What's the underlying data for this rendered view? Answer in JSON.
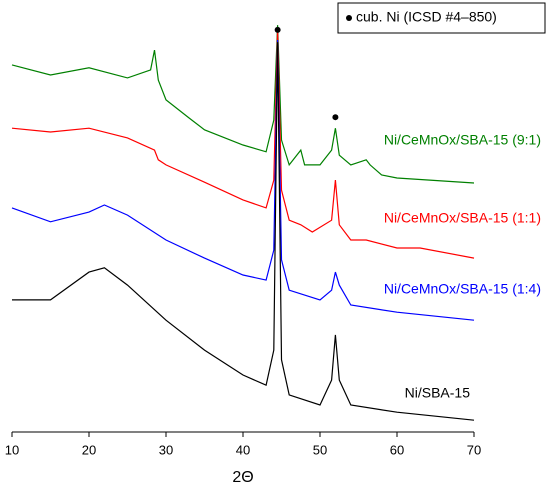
{
  "chart_data": {
    "type": "line",
    "xlabel": "2Θ",
    "xlim": [
      10,
      70
    ],
    "xticks": [
      10,
      20,
      30,
      40,
      50,
      60,
      70
    ],
    "ylim": [
      0,
      100
    ],
    "legend": {
      "marker_label": "cub. Ni (ICSD #4–850)",
      "position": "upper right"
    },
    "peak_markers": {
      "x": [
        44.5,
        52
      ],
      "y": [
        95.3,
        74.6
      ],
      "color": "#000000"
    },
    "series": [
      {
        "name": "Ni/CeMnOx/SBA-15 (9:1)",
        "color": "#008000",
        "x": [
          10,
          15,
          20,
          25,
          28,
          28.5,
          29,
          30,
          33,
          35,
          40,
          43,
          44,
          44.5,
          45,
          46,
          47.5,
          48,
          50,
          51.5,
          52,
          52.5,
          54,
          56,
          56.5,
          58,
          60,
          70
        ],
        "values": [
          87.0,
          84.6,
          86.3,
          83.9,
          85.8,
          90.5,
          83.4,
          78.7,
          74.4,
          71.6,
          68.0,
          66.4,
          73.9,
          96.4,
          69.2,
          63.3,
          66.8,
          63.3,
          63.3,
          66.8,
          72.0,
          65.6,
          63.3,
          64.5,
          63.3,
          60.9,
          60.2,
          59.0
        ]
      },
      {
        "name": "Ni/CeMnOx/SBA-15 (1:1)",
        "color": "#ff0000",
        "x": [
          10,
          15,
          20,
          25,
          28.5,
          29,
          30,
          35,
          40,
          43,
          44,
          44.5,
          45,
          46,
          47.5,
          49,
          51.5,
          52,
          52.5,
          54,
          56,
          60,
          63,
          70
        ],
        "values": [
          72.0,
          71.1,
          72.0,
          69.7,
          66.8,
          64.5,
          63.3,
          59.2,
          55.0,
          53.1,
          59.7,
          95.3,
          57.3,
          50.2,
          49.1,
          47.4,
          50.2,
          59.7,
          49.1,
          45.5,
          45.5,
          43.6,
          43.6,
          41.2
        ]
      },
      {
        "name": "Ni/CeMnOx/SBA-15 (1:4)",
        "color": "#0000ff",
        "x": [
          10,
          15,
          20,
          22,
          25,
          30,
          35,
          40,
          43,
          44,
          44.5,
          45,
          46,
          50,
          51.5,
          52,
          52.5,
          54,
          60,
          70
        ],
        "values": [
          53.1,
          49.8,
          52.1,
          53.8,
          51.4,
          45.5,
          41.2,
          37.2,
          36.0,
          43.1,
          92.9,
          40.8,
          33.6,
          31.3,
          33.6,
          37.9,
          34.8,
          30.1,
          28.4,
          26.5
        ]
      },
      {
        "name": "Ni/SBA-15",
        "color": "#000000",
        "x": [
          10,
          15,
          20,
          22,
          25,
          30,
          35,
          40,
          43,
          44,
          44.5,
          45,
          46,
          50,
          51.5,
          52,
          52.5,
          54,
          60,
          70
        ],
        "values": [
          31.3,
          31.3,
          37.9,
          38.9,
          34.8,
          26.5,
          19.4,
          13.5,
          11.1,
          19.4,
          92.4,
          17.1,
          8.8,
          6.4,
          12.3,
          23.0,
          12.3,
          6.4,
          4.7,
          2.8
        ]
      }
    ]
  }
}
